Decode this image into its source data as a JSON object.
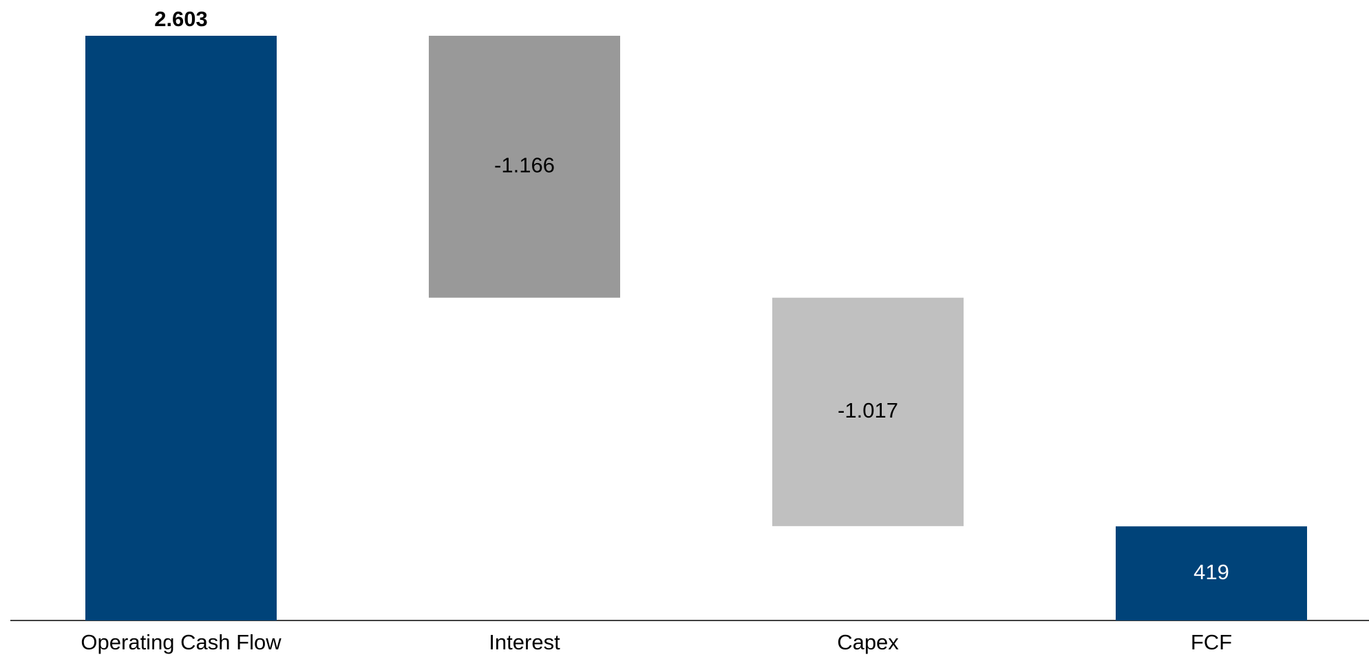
{
  "chart_data": {
    "type": "waterfall",
    "categories": [
      "Operating Cash Flow",
      "Interest",
      "Capex",
      "FCF"
    ],
    "values": [
      2603,
      -1166,
      -1017,
      419
    ],
    "value_labels": [
      "2.603",
      "-1.166",
      "-1.017",
      "419"
    ],
    "measure": [
      "absolute",
      "relative",
      "relative",
      "total"
    ],
    "colors": [
      "#004379",
      "#999999",
      "#c0c0c0",
      "#004379"
    ],
    "label_colors": [
      "#000000",
      "#000000",
      "#000000",
      "#ffffff"
    ]
  }
}
